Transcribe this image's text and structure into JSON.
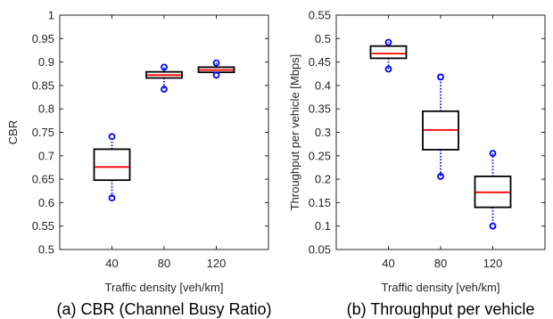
{
  "chart_data": [
    {
      "type": "boxplot",
      "caption": "(a) CBR (Channel Busy Ratio)",
      "xlabel": "Traffic density [veh/km]",
      "ylabel": "CBR",
      "categories": [
        "40",
        "80",
        "120"
      ],
      "ylim": [
        0.5,
        1.0
      ],
      "yticks": [
        "0.5",
        "0.55",
        "0.6",
        "0.65",
        "0.7",
        "0.75",
        "0.8",
        "0.85",
        "0.9",
        "0.95",
        "1"
      ],
      "grid": false,
      "boxes": [
        {
          "category": "40",
          "whisker_low": 0.61,
          "q1": 0.648,
          "median": 0.676,
          "q3": 0.714,
          "whisker_high": 0.741
        },
        {
          "category": "80",
          "whisker_low": 0.842,
          "q1": 0.866,
          "median": 0.872,
          "q3": 0.879,
          "whisker_high": 0.889
        },
        {
          "category": "120",
          "whisker_low": 0.872,
          "q1": 0.878,
          "median": 0.883,
          "q3": 0.889,
          "whisker_high": 0.898
        }
      ]
    },
    {
      "type": "boxplot",
      "caption": "(b) Throughput per vehicle",
      "xlabel": "Traffic density [veh/km]",
      "ylabel": "Throughput per vehicle [Mbps]",
      "categories": [
        "40",
        "80",
        "120"
      ],
      "ylim": [
        0.05,
        0.55
      ],
      "yticks": [
        "0.05",
        "0.1",
        "0.15",
        "0.2",
        "0.25",
        "0.3",
        "0.35",
        "0.4",
        "0.45",
        "0.5",
        "0.55"
      ],
      "grid": false,
      "boxes": [
        {
          "category": "40",
          "whisker_low": 0.435,
          "q1": 0.458,
          "median": 0.468,
          "q3": 0.484,
          "whisker_high": 0.492
        },
        {
          "category": "80",
          "whisker_low": 0.206,
          "q1": 0.263,
          "median": 0.305,
          "q3": 0.345,
          "whisker_high": 0.418
        },
        {
          "category": "120",
          "whisker_low": 0.1,
          "q1": 0.14,
          "median": 0.172,
          "q3": 0.206,
          "whisker_high": 0.255
        }
      ]
    }
  ],
  "colors": {
    "median": "#ff0000",
    "whisker": "#0000ff",
    "box": "#000000",
    "axis": "#262626"
  }
}
